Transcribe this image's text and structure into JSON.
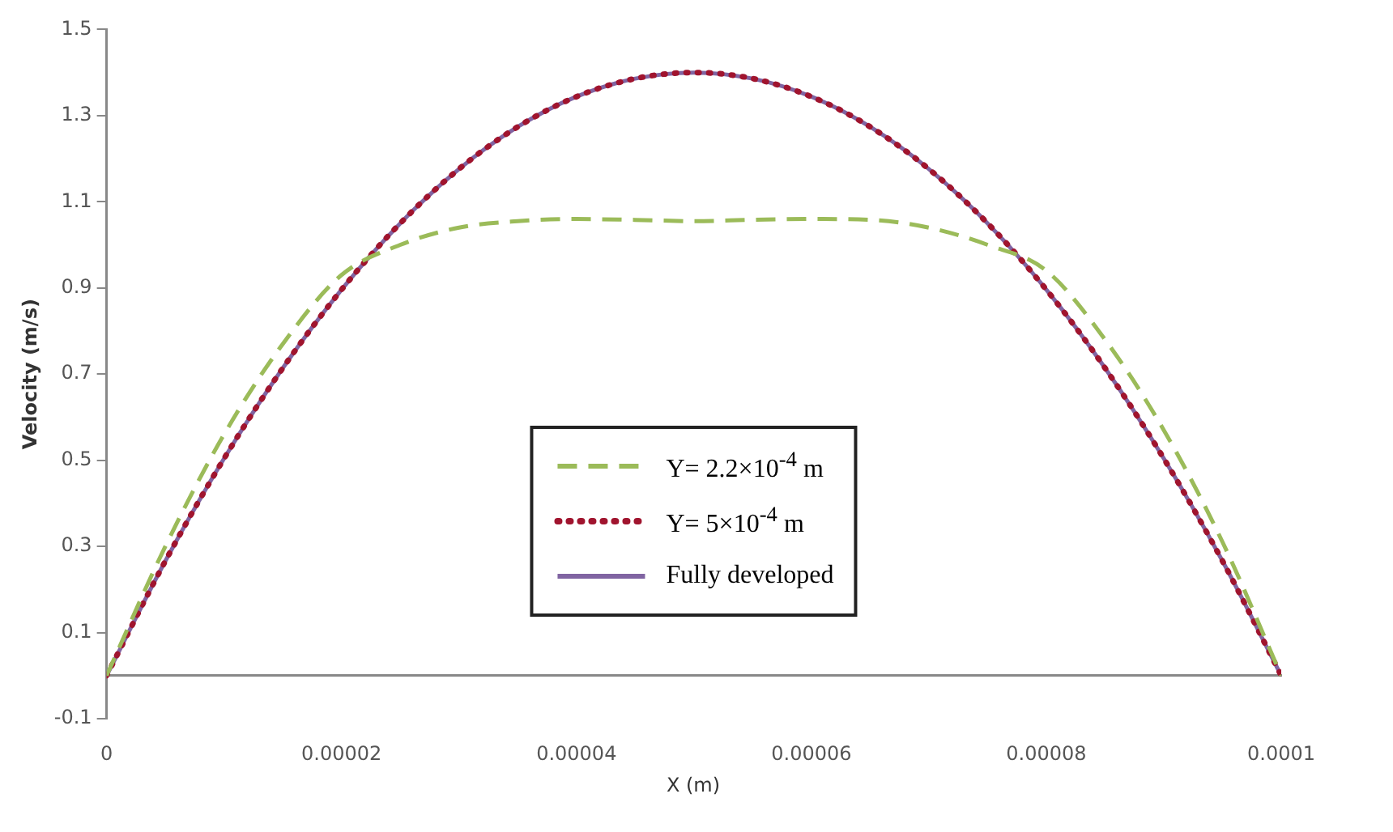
{
  "chart_data": {
    "type": "line",
    "xlabel": "X (m)",
    "ylabel": "Velocity (m/s)",
    "xlim": [
      0,
      0.0001
    ],
    "ylim": [
      -0.1,
      1.5
    ],
    "xticks": [
      0,
      {
        "value": 2e-05,
        "label": "0.00002"
      },
      {
        "value": 4e-05,
        "label": "0.00004"
      },
      {
        "value": 6e-05,
        "label": "0.00006"
      },
      {
        "value": 8e-05,
        "label": "0.00008"
      },
      {
        "value": 0.0001,
        "label": "0.0001"
      }
    ],
    "yticks": [
      -0.1,
      0.1,
      0.3,
      0.5,
      0.7,
      0.9,
      1.1,
      1.3,
      1.5
    ],
    "x": [
      0,
      5e-06,
      1e-05,
      1.5e-05,
      2e-05,
      2.5e-05,
      3e-05,
      3.5e-05,
      4e-05,
      4.5e-05,
      5e-05,
      5.5e-05,
      6e-05,
      6.5e-05,
      7e-05,
      7.5e-05,
      8e-05,
      8.5e-05,
      9e-05,
      9.5e-05,
      0.0001
    ],
    "grid": false,
    "legend": "bottom",
    "marker": "none",
    "series": [
      {
        "name": "Y= 2.2×10$^{-4}$ m",
        "color": "#9bbb59",
        "line_style": "dashed",
        "values": [
          0,
          0.3,
          0.56,
          0.77,
          0.93,
          1.0,
          1.04,
          1.055,
          1.06,
          1.058,
          1.055,
          1.058,
          1.06,
          1.058,
          1.04,
          1.0,
          0.94,
          0.78,
          0.57,
          0.31,
          0
        ]
      },
      {
        "name": "Y= 5×10$^{-4}$ m",
        "color": "#a0142e",
        "line_style": "dotted",
        "values": [
          0,
          0.266,
          0.504,
          0.714,
          0.896,
          1.05,
          1.176,
          1.274,
          1.344,
          1.386,
          1.4,
          1.386,
          1.344,
          1.274,
          1.176,
          1.05,
          0.896,
          0.714,
          0.504,
          0.266,
          0
        ]
      },
      {
        "name": "Fully developed",
        "color": "#8064a2",
        "line_style": "solid",
        "values": [
          0,
          0.266,
          0.504,
          0.714,
          0.896,
          1.05,
          1.176,
          1.274,
          1.344,
          1.386,
          1.4,
          1.386,
          1.344,
          1.274,
          1.176,
          1.05,
          0.896,
          0.714,
          0.504,
          0.266,
          0
        ]
      }
    ]
  }
}
